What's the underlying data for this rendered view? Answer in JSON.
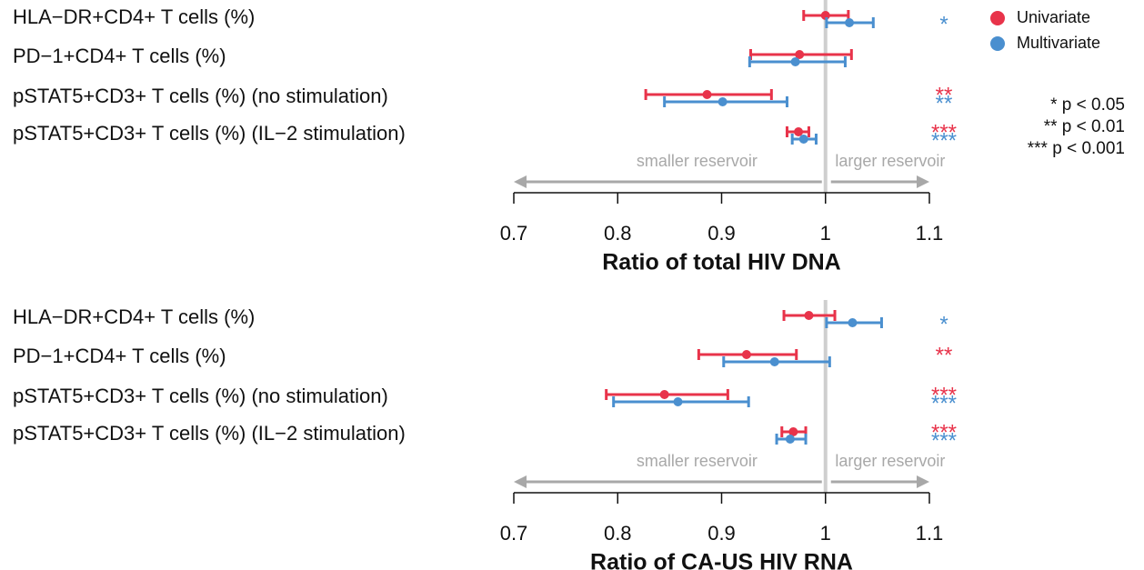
{
  "chart_data": [
    {
      "type": "forest",
      "xlabel": "Ratio of total HIV DNA",
      "categories": [
        "HLA−DR+CD4+ T cells (%)",
        "PD−1+CD4+ T cells (%)",
        "pSTAT5+CD3+ T cells (%) (no stimulation)",
        "pSTAT5+CD3+ T cells (%) (IL−2 stimulation)"
      ],
      "series": [
        {
          "name": "Univariate",
          "color": "#e8334a",
          "values": [
            1.0,
            0.975,
            0.886,
            0.974
          ],
          "lower": [
            0.979,
            0.928,
            0.827,
            0.963
          ],
          "upper": [
            1.022,
            1.025,
            0.948,
            0.984
          ],
          "stars": [
            null,
            null,
            "**",
            "***"
          ]
        },
        {
          "name": "Multivariate",
          "color": "#4a8fcf",
          "values": [
            1.023,
            0.971,
            0.901,
            0.979
          ],
          "lower": [
            1.001,
            0.927,
            0.845,
            0.968
          ],
          "upper": [
            1.046,
            1.019,
            0.963,
            0.991
          ],
          "stars": [
            "*",
            null,
            "**",
            "***"
          ]
        }
      ],
      "xlim": [
        0.7,
        1.1
      ],
      "xticks": [
        0.7,
        0.8,
        0.9,
        1,
        1.1
      ],
      "refline": 1,
      "annotations": [
        "smaller reservoir",
        "larger reservoir"
      ]
    },
    {
      "type": "forest",
      "xlabel": "Ratio of CA-US HIV RNA",
      "categories": [
        "HLA−DR+CD4+ T cells (%)",
        "PD−1+CD4+ T cells (%)",
        "pSTAT5+CD3+ T cells (%) (no stimulation)",
        "pSTAT5+CD3+ T cells (%) (IL−2 stimulation)"
      ],
      "series": [
        {
          "name": "Univariate",
          "color": "#e8334a",
          "values": [
            0.984,
            0.924,
            0.845,
            0.969
          ],
          "lower": [
            0.96,
            0.878,
            0.789,
            0.958
          ],
          "upper": [
            1.009,
            0.972,
            0.906,
            0.981
          ],
          "stars": [
            null,
            "**",
            "***",
            "***"
          ]
        },
        {
          "name": "Multivariate",
          "color": "#4a8fcf",
          "values": [
            1.026,
            0.951,
            0.858,
            0.966
          ],
          "lower": [
            1.001,
            0.902,
            0.796,
            0.953
          ],
          "upper": [
            1.054,
            1.004,
            0.926,
            0.981
          ],
          "stars": [
            "*",
            null,
            "***",
            "***"
          ]
        }
      ],
      "xlim": [
        0.7,
        1.1
      ],
      "xticks": [
        0.7,
        0.8,
        0.9,
        1,
        1.1
      ],
      "refline": 1,
      "annotations": [
        "smaller reservoir",
        "larger reservoir"
      ]
    }
  ],
  "significance_legend": [
    "*  p < 0.05",
    "**  p < 0.01",
    "***  p < 0.001"
  ]
}
